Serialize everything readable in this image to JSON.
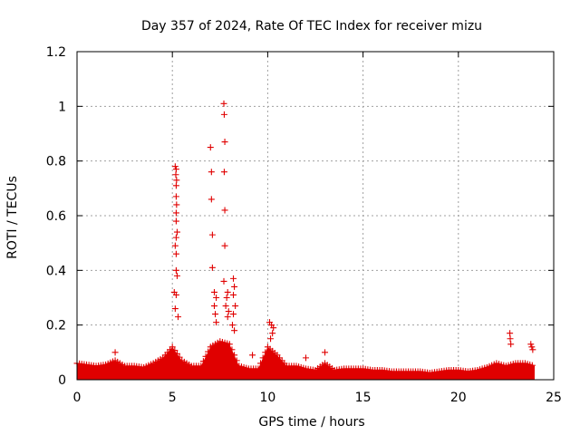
{
  "chart_data": {
    "type": "scatter",
    "title": "Day 357 of 2024, Rate Of TEC Index for receiver mizu",
    "xlabel": "GPS time / hours",
    "ylabel": "ROTI / TECUs",
    "xlim": [
      0,
      25
    ],
    "ylim": [
      0,
      1.2
    ],
    "xticks": [
      "0",
      "5",
      "10",
      "15",
      "20",
      "25"
    ],
    "yticks": [
      "0",
      "0.2",
      "0.4",
      "0.6",
      "0.8",
      "1",
      "1.2"
    ],
    "grid": true,
    "marker": "+",
    "color": "#e00000",
    "series": [
      {
        "name": "",
        "points": [
          [
            5.15,
            0.78
          ],
          [
            5.2,
            0.77
          ],
          [
            5.18,
            0.75
          ],
          [
            5.22,
            0.73
          ],
          [
            5.2,
            0.71
          ],
          [
            5.2,
            0.67
          ],
          [
            5.22,
            0.64
          ],
          [
            5.2,
            0.61
          ],
          [
            5.2,
            0.58
          ],
          [
            5.25,
            0.54
          ],
          [
            5.2,
            0.52
          ],
          [
            5.15,
            0.49
          ],
          [
            5.2,
            0.46
          ],
          [
            5.2,
            0.4
          ],
          [
            5.25,
            0.38
          ],
          [
            5.1,
            0.32
          ],
          [
            5.2,
            0.31
          ],
          [
            5.15,
            0.26
          ],
          [
            5.3,
            0.23
          ],
          [
            7.0,
            0.85
          ],
          [
            7.05,
            0.76
          ],
          [
            7.05,
            0.66
          ],
          [
            7.1,
            0.53
          ],
          [
            7.1,
            0.41
          ],
          [
            7.2,
            0.32
          ],
          [
            7.3,
            0.3
          ],
          [
            7.2,
            0.27
          ],
          [
            7.25,
            0.24
          ],
          [
            7.3,
            0.21
          ],
          [
            7.7,
            1.01
          ],
          [
            7.72,
            0.97
          ],
          [
            7.75,
            0.87
          ],
          [
            7.72,
            0.76
          ],
          [
            7.75,
            0.62
          ],
          [
            7.75,
            0.49
          ],
          [
            7.7,
            0.36
          ],
          [
            7.9,
            0.32
          ],
          [
            7.85,
            0.3
          ],
          [
            7.8,
            0.27
          ],
          [
            7.95,
            0.25
          ],
          [
            7.9,
            0.23
          ],
          [
            8.2,
            0.37
          ],
          [
            8.25,
            0.34
          ],
          [
            8.2,
            0.31
          ],
          [
            8.3,
            0.27
          ],
          [
            8.2,
            0.24
          ],
          [
            8.15,
            0.2
          ],
          [
            8.25,
            0.18
          ],
          [
            10.1,
            0.21
          ],
          [
            10.2,
            0.2
          ],
          [
            10.3,
            0.19
          ],
          [
            10.25,
            0.17
          ],
          [
            10.15,
            0.15
          ],
          [
            22.7,
            0.17
          ],
          [
            22.72,
            0.15
          ],
          [
            22.75,
            0.13
          ],
          [
            23.8,
            0.13
          ],
          [
            23.85,
            0.12
          ],
          [
            23.9,
            0.11
          ],
          [
            2.0,
            0.1
          ],
          [
            12.0,
            0.08
          ],
          [
            13.0,
            0.1
          ],
          [
            9.2,
            0.09
          ]
        ]
      }
    ]
  }
}
